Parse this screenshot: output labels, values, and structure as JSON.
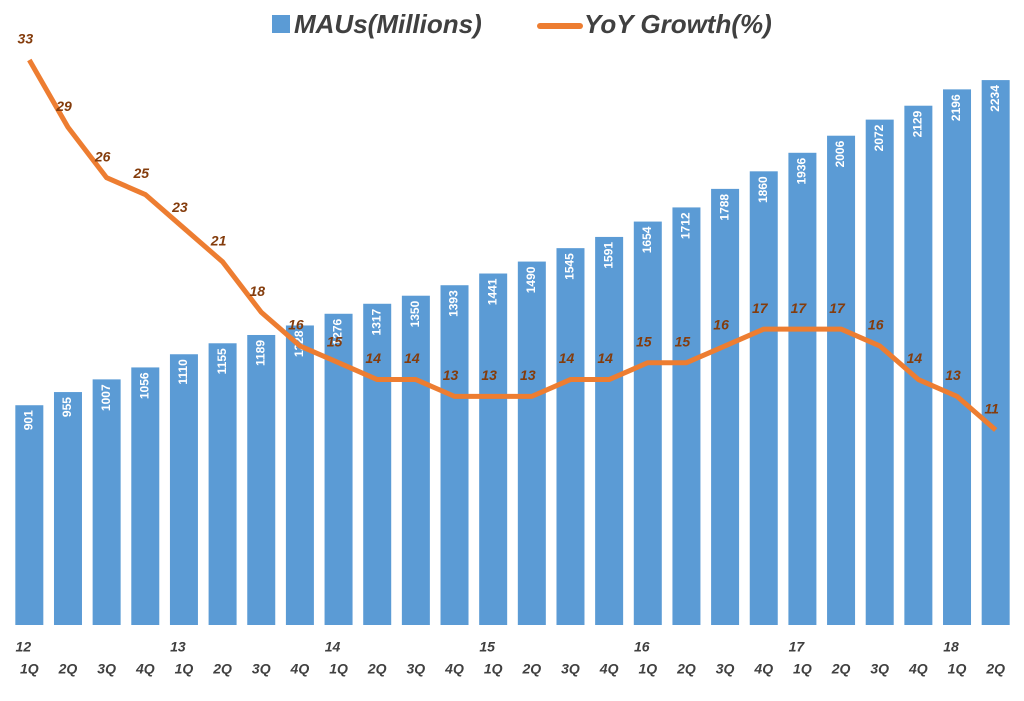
{
  "chart_data": {
    "type": "bar_line",
    "categories": [
      "1Q",
      "2Q",
      "3Q",
      "4Q",
      "1Q",
      "2Q",
      "3Q",
      "4Q",
      "1Q",
      "2Q",
      "3Q",
      "4Q",
      "1Q",
      "2Q",
      "3Q",
      "4Q",
      "1Q",
      "2Q",
      "3Q",
      "4Q",
      "1Q",
      "2Q",
      "3Q",
      "4Q",
      "1Q",
      "2Q"
    ],
    "category_groups": [
      "12",
      null,
      null,
      null,
      "13",
      null,
      null,
      null,
      "14",
      null,
      null,
      null,
      "15",
      null,
      null,
      null,
      "16",
      null,
      null,
      null,
      "17",
      null,
      null,
      null,
      "18",
      null
    ],
    "series": [
      {
        "name": "MAUs(Millions)",
        "type": "bar",
        "color": "#5b9bd5",
        "values": [
          901,
          955,
          1007,
          1056,
          1110,
          1155,
          1189,
          1228,
          1276,
          1317,
          1350,
          1393,
          1441,
          1490,
          1545,
          1591,
          1654,
          1712,
          1788,
          1860,
          1936,
          2006,
          2072,
          2129,
          2196,
          2234
        ]
      },
      {
        "name": "YoY Growth(%)",
        "type": "line",
        "axis": "y2",
        "color": "#ed7d31",
        "values": [
          33,
          29,
          26,
          25,
          23,
          21,
          18,
          16,
          15,
          14,
          14,
          13,
          13,
          13,
          14,
          14,
          15,
          15,
          16,
          17,
          17,
          17,
          16,
          14,
          13,
          11
        ]
      }
    ],
    "ylim": [
      0,
      2300
    ],
    "y2lim": [
      0,
      33
    ],
    "legend": "top"
  }
}
